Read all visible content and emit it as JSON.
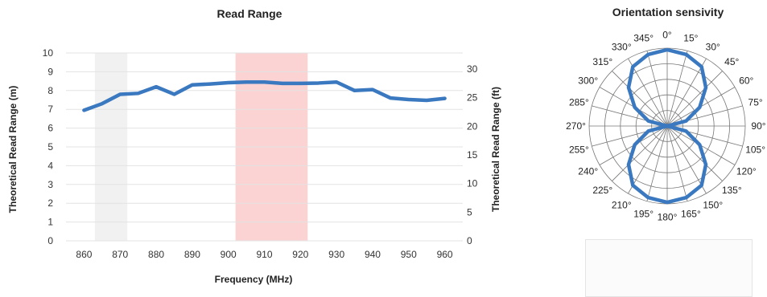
{
  "chart_data": [
    {
      "type": "line",
      "title": "Read Range",
      "xlabel": "Frequency (MHz)",
      "ylabel": "Theoretical Read Range (m)",
      "y2label": "Theoretical Read Range (ft)",
      "xlim": [
        855,
        965
      ],
      "ylim": [
        0,
        10
      ],
      "y2lim": [
        0,
        32.81
      ],
      "x_ticks": [
        860,
        870,
        880,
        890,
        900,
        910,
        920,
        930,
        940,
        950,
        960
      ],
      "y_ticks": [
        0,
        1,
        2,
        3,
        4,
        5,
        6,
        7,
        8,
        9,
        10
      ],
      "y2_ticks": [
        0,
        5,
        10,
        15,
        20,
        25,
        30
      ],
      "grid": true,
      "highlight_bands": [
        {
          "x": [
            863,
            872
          ],
          "color": "#f1f1f1"
        },
        {
          "x": [
            902,
            922
          ],
          "color": "#fbd3d3"
        }
      ],
      "series": [
        {
          "color": "#3a78c0",
          "x": [
            860,
            865,
            870,
            875,
            880,
            885,
            890,
            895,
            900,
            905,
            910,
            915,
            920,
            925,
            930,
            935,
            940,
            945,
            950,
            955,
            960
          ],
          "y": [
            6.95,
            7.3,
            7.8,
            7.85,
            8.2,
            7.8,
            8.3,
            8.35,
            8.42,
            8.45,
            8.45,
            8.38,
            8.38,
            8.4,
            8.45,
            8.0,
            8.05,
            7.6,
            7.52,
            7.48,
            7.58
          ]
        }
      ]
    },
    {
      "type": "polar",
      "title": "Orientation sensivity",
      "angle_ticks": [
        "0°",
        "15°",
        "30°",
        "45°",
        "60°",
        "75°",
        "90°",
        "105°",
        "120°",
        "135°",
        "150°",
        "165°",
        "180°",
        "195°",
        "210°",
        "225°",
        "240°",
        "255°",
        "270°",
        "285°",
        "300°",
        "315°",
        "330°",
        "345°"
      ],
      "angles_deg": [
        0,
        15,
        30,
        45,
        60,
        75,
        90,
        105,
        120,
        135,
        150,
        165,
        180,
        195,
        210,
        225,
        240,
        255,
        270,
        285,
        300,
        315,
        330,
        345
      ],
      "r": [
        0.98,
        0.95,
        0.88,
        0.7,
        0.48,
        0.25,
        0.0,
        0.25,
        0.48,
        0.7,
        0.88,
        0.95,
        0.98,
        0.95,
        0.88,
        0.7,
        0.48,
        0.25,
        0.0,
        0.25,
        0.48,
        0.7,
        0.88,
        0.95
      ],
      "rlim": [
        0,
        1
      ],
      "grid": true,
      "series_color": "#3a78c0"
    }
  ]
}
